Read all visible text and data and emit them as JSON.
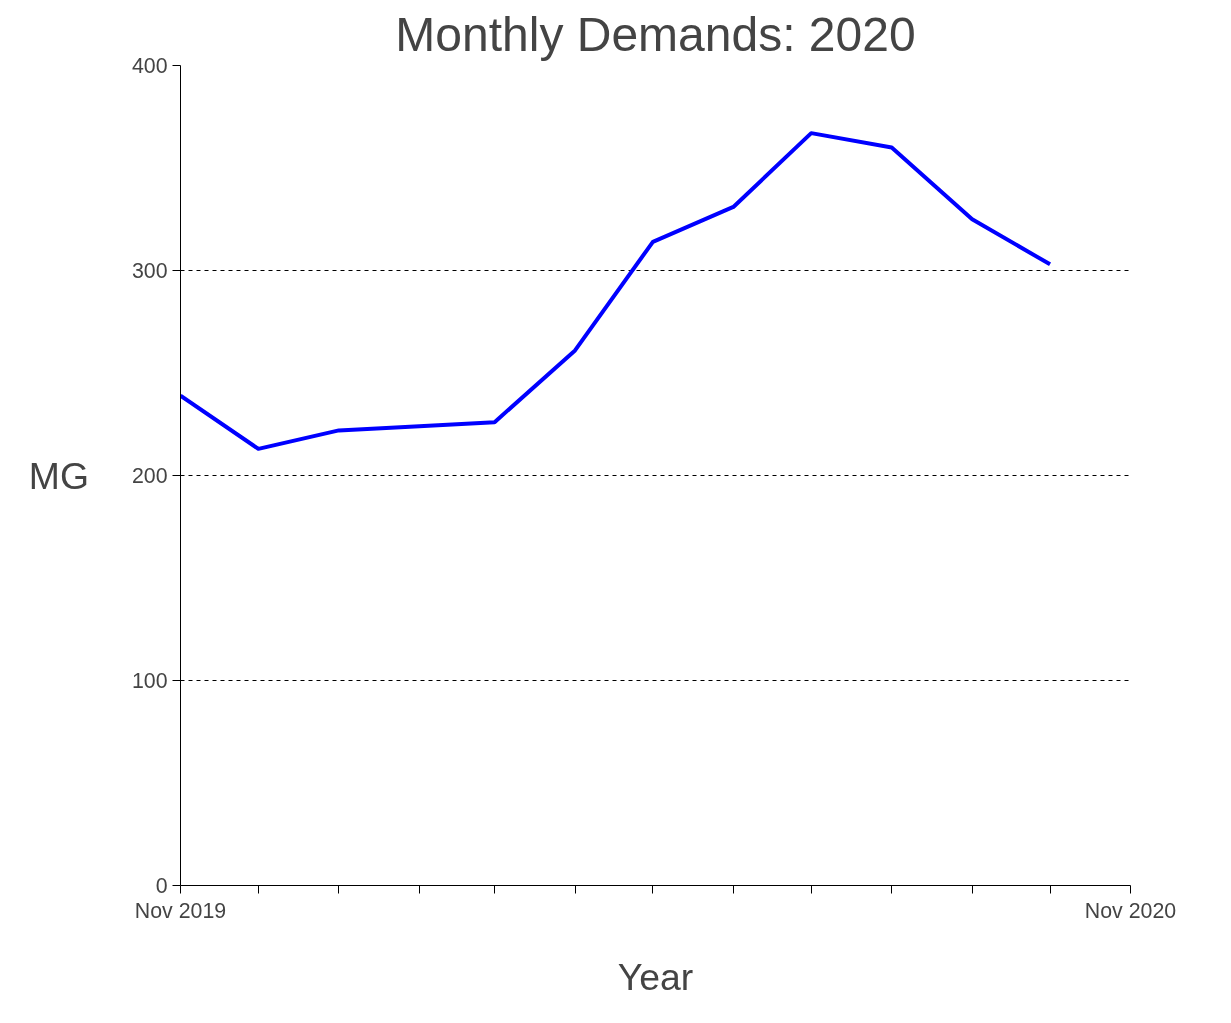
{
  "chart_data": {
    "type": "line",
    "title": "Monthly Demands: 2020",
    "xlabel": "Year",
    "ylabel": "MG",
    "x": [
      "2019-11",
      "2019-12",
      "2020-01",
      "2020-02",
      "2020-03",
      "2020-04",
      "2020-05",
      "2020-06",
      "2020-07",
      "2020-08",
      "2020-09",
      "2020-10"
    ],
    "series": [
      {
        "color": "#0000ff",
        "values": [
          239,
          213,
          222,
          224,
          226,
          261,
          314,
          331,
          367,
          360,
          325,
          303
        ]
      }
    ],
    "xlim": [
      "2019-11",
      "2020-11"
    ],
    "xticks": [
      {
        "value": "2019-11",
        "label": "Nov 2019"
      },
      {
        "value": "2019-12",
        "label": null
      },
      {
        "value": "2020-01",
        "label": null
      },
      {
        "value": "2020-02",
        "label": null
      },
      {
        "value": "2020-03",
        "label": null
      },
      {
        "value": "2020-04",
        "label": null
      },
      {
        "value": "2020-05",
        "label": null
      },
      {
        "value": "2020-06",
        "label": null
      },
      {
        "value": "2020-07",
        "label": null
      },
      {
        "value": "2020-08",
        "label": null
      },
      {
        "value": "2020-09",
        "label": null
      },
      {
        "value": "2020-10",
        "label": null
      },
      {
        "value": "2020-11",
        "label": "Nov 2020"
      }
    ],
    "ylim": [
      0,
      400
    ],
    "yticks": [
      0,
      100,
      200,
      300,
      400
    ],
    "grid": "y",
    "marker": "none",
    "line_style": "solid"
  }
}
